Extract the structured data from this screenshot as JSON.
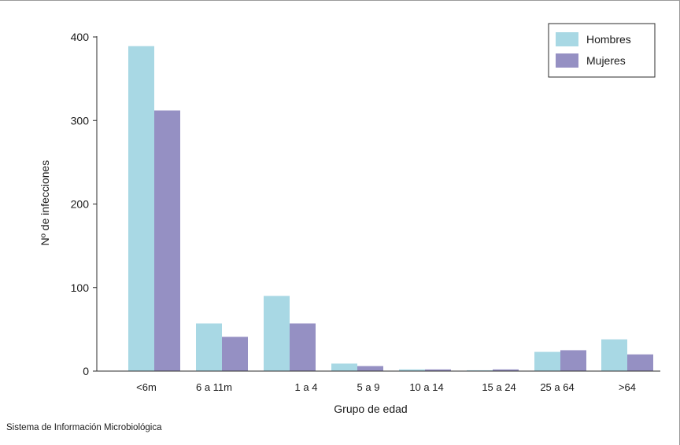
{
  "chart_data": {
    "type": "bar",
    "xlabel": "Grupo de edad",
    "ylabel": "Nº de infecciones",
    "ylim": [
      0,
      400
    ],
    "yticks": [
      0,
      100,
      200,
      300,
      400
    ],
    "categories": [
      "<6m",
      "6 a 11m",
      "1 a 4",
      "5 a 9",
      "10 a 14",
      "15 a 24",
      "25 a 64",
      ">64"
    ],
    "series": [
      {
        "name": "Hombres",
        "color": "#a8d8e4",
        "values": [
          389,
          57,
          90,
          9,
          2,
          1,
          23,
          38
        ]
      },
      {
        "name": "Mujeres",
        "color": "#9590c3",
        "values": [
          312,
          41,
          57,
          6,
          2,
          2,
          25,
          20
        ]
      }
    ],
    "legend_position": "top-right",
    "grid": false
  },
  "source_note": "Sistema de Información Microbiológica"
}
